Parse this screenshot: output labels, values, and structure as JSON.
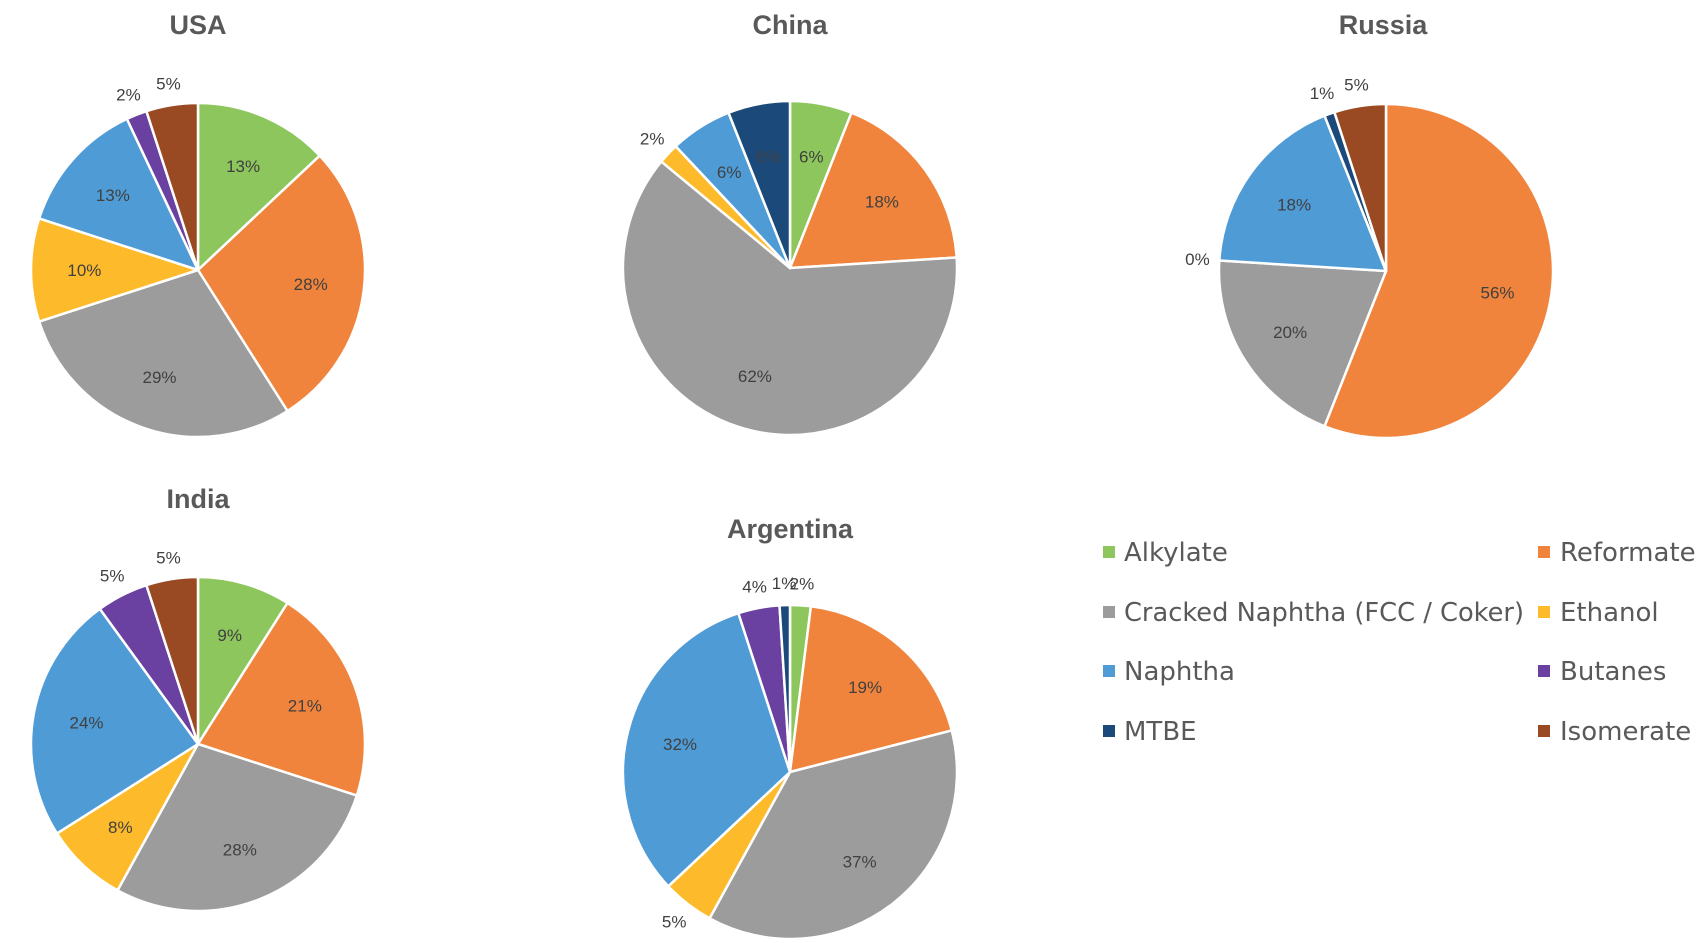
{
  "chart_data": {
    "type": "pie",
    "categories": [
      "Alkylate",
      "Reformate",
      "Cracked Naphtha (FCC / Coker)",
      "Ethanol",
      "Naphtha",
      "Butanes",
      "MTBE",
      "Isomerate"
    ],
    "colors": {
      "Alkylate": "#8dc65c",
      "Reformate": "#f0843c",
      "Cracked Naphtha (FCC / Coker)": "#9c9c9c",
      "Ethanol": "#fdbb2c",
      "Naphtha": "#4f9bd6",
      "Butanes": "#6a40a0",
      "MTBE": "#1b4a7a",
      "Isomerate": "#9a4a22"
    },
    "legend": {
      "placement": "right",
      "entries": [
        "Alkylate",
        "Reformate",
        "Cracked Naphtha (FCC / Coker)",
        "Ethanol",
        "Naphtha",
        "Butanes",
        "MTBE",
        "Isomerate"
      ]
    },
    "charts": [
      {
        "title": "USA",
        "slices": [
          {
            "category": "Alkylate",
            "value": 13,
            "label": "13%"
          },
          {
            "category": "Reformate",
            "value": 28,
            "label": "28%"
          },
          {
            "category": "Cracked Naphtha (FCC / Coker)",
            "value": 29,
            "label": "29%"
          },
          {
            "category": "Ethanol",
            "value": 10,
            "label": "10%"
          },
          {
            "category": "Naphtha",
            "value": 13,
            "label": "13%"
          },
          {
            "category": "Butanes",
            "value": 2,
            "label": "2%"
          },
          {
            "category": "Isomerate",
            "value": 5,
            "label": "5%"
          }
        ]
      },
      {
        "title": "China",
        "slices": [
          {
            "category": "Alkylate",
            "value": 6,
            "label": "6%"
          },
          {
            "category": "Reformate",
            "value": 18,
            "label": "18%"
          },
          {
            "category": "Cracked Naphtha (FCC / Coker)",
            "value": 62,
            "label": "62%"
          },
          {
            "category": "Ethanol",
            "value": 2,
            "label": "2%"
          },
          {
            "category": "Naphtha",
            "value": 6,
            "label": "6%"
          },
          {
            "category": "MTBE",
            "value": 6,
            "label": "6%"
          }
        ]
      },
      {
        "title": "Russia",
        "slices": [
          {
            "category": "Reformate",
            "value": 56,
            "label": "56%"
          },
          {
            "category": "Cracked Naphtha (FCC / Coker)",
            "value": 20,
            "label": "20%"
          },
          {
            "category": "Ethanol",
            "value": 0,
            "label": "0%"
          },
          {
            "category": "Naphtha",
            "value": 18,
            "label": "18%"
          },
          {
            "category": "MTBE",
            "value": 1,
            "label": "1%"
          },
          {
            "category": "Isomerate",
            "value": 5,
            "label": "5%"
          }
        ]
      },
      {
        "title": "India",
        "slices": [
          {
            "category": "Alkylate",
            "value": 9,
            "label": "9%"
          },
          {
            "category": "Reformate",
            "value": 21,
            "label": "21%"
          },
          {
            "category": "Cracked Naphtha (FCC / Coker)",
            "value": 28,
            "label": "28%"
          },
          {
            "category": "Ethanol",
            "value": 8,
            "label": "8%"
          },
          {
            "category": "Naphtha",
            "value": 24,
            "label": "24%"
          },
          {
            "category": "Butanes",
            "value": 5,
            "label": "5%"
          },
          {
            "category": "Isomerate",
            "value": 5,
            "label": "5%"
          }
        ]
      },
      {
        "title": "Argentina",
        "slices": [
          {
            "category": "Alkylate",
            "value": 2,
            "label": "2%"
          },
          {
            "category": "Reformate",
            "value": 19,
            "label": "19%"
          },
          {
            "category": "Cracked Naphtha (FCC / Coker)",
            "value": 37,
            "label": "37%"
          },
          {
            "category": "Ethanol",
            "value": 5,
            "label": "5%"
          },
          {
            "category": "Naphtha",
            "value": 32,
            "label": "32%"
          },
          {
            "category": "Butanes",
            "value": 4,
            "label": "4%"
          },
          {
            "category": "MTBE",
            "value": 1,
            "label": "1%"
          }
        ]
      }
    ]
  }
}
